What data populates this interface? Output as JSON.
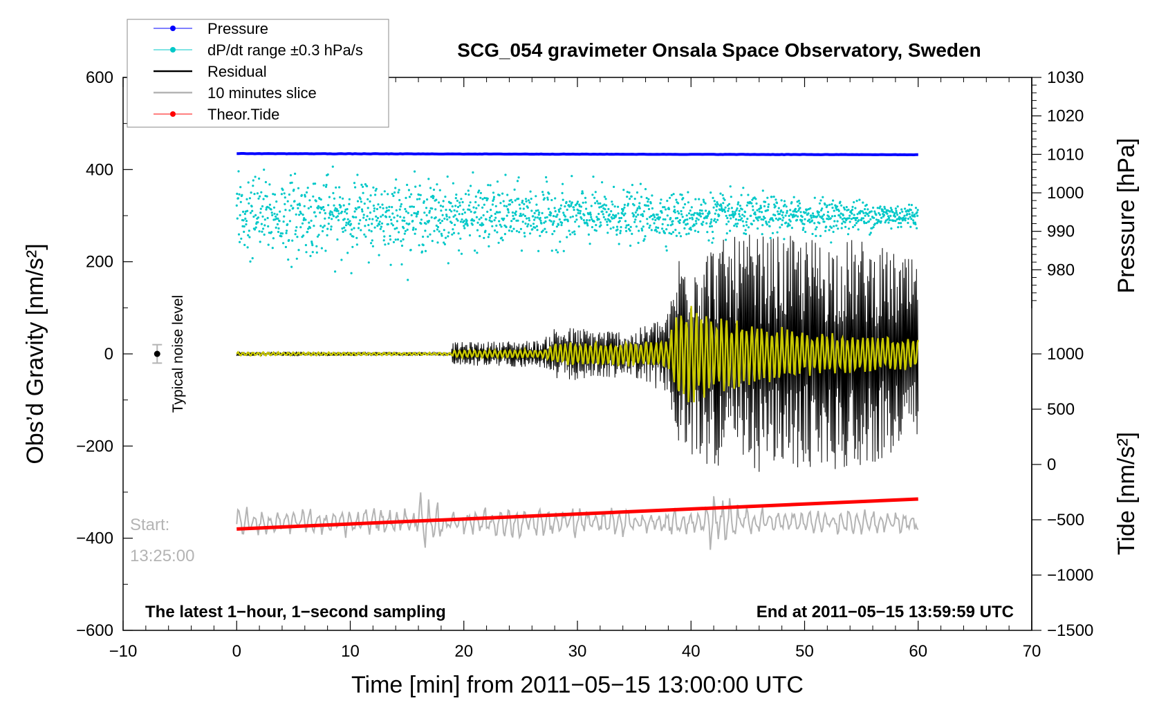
{
  "chart_data": {
    "type": "line",
    "title": "SCG_054 gravimeter Onsala Space Observatory, Sweden",
    "xlabel": "Time [min] from 2011−05−15 13:00:00 UTC",
    "ylabel": "Obs’d Gravity [nm/s²]",
    "y2label_pressure": "Pressure [hPa]",
    "y2label_tide": "Tide [nm/s²]",
    "xlim": [
      -10,
      70
    ],
    "ylim": [
      -600,
      600
    ],
    "pressure_lim": [
      970,
      1030
    ],
    "tide_lim": [
      -1500,
      1000
    ],
    "x_ticks": [
      "−10",
      "0",
      "10",
      "20",
      "30",
      "40",
      "50",
      "60",
      "70"
    ],
    "x_tick_values": [
      -10,
      0,
      10,
      20,
      30,
      40,
      50,
      60,
      70
    ],
    "y_ticks": [
      "−600",
      "−400",
      "−200",
      "0",
      "200",
      "400",
      "600"
    ],
    "y_tick_values": [
      -600,
      -400,
      -200,
      0,
      200,
      400,
      600
    ],
    "pressure_ticks": [
      "980",
      "990",
      "1000",
      "1010",
      "1020",
      "1030"
    ],
    "pressure_tick_values": [
      980,
      990,
      1000,
      1010,
      1020,
      1030
    ],
    "tide_ticks": [
      "−1500",
      "−1000",
      "−500",
      "0",
      "500",
      "1000"
    ],
    "tide_tick_values": [
      -1500,
      -1000,
      -500,
      0,
      500,
      1000
    ],
    "legend": {
      "position": "top-left",
      "entries": [
        {
          "label": "Pressure",
          "color": "#0000ff",
          "marker": true
        },
        {
          "label": "dP/dt range ±0.3 hPa/s",
          "color": "#00c8c8",
          "marker": true
        },
        {
          "label": "Residual",
          "color": "#000000",
          "marker": false
        },
        {
          "label": "10 minutes slice",
          "color": "#b4b4b4",
          "marker": false
        },
        {
          "label": "Theor.Tide",
          "color": "#ff0000",
          "marker": true
        }
      ]
    },
    "annotations": {
      "bottom_left": "The latest 1−hour, 1−second sampling",
      "bottom_right": "End at 2011−05−15 13:59:59 UTC",
      "noise_label": "Typical noise level",
      "slice_start_label": "Start:",
      "slice_start_time": "13:25:00"
    },
    "noise_bar": {
      "x": -7,
      "y": 0,
      "half_range": 20
    },
    "series": [
      {
        "name": "Pressure",
        "units": "hPa",
        "x_range": [
          0,
          60
        ],
        "start": 1010.2,
        "end": 1009.9,
        "color": "#0000ff"
      },
      {
        "name": "dP/dt range ±0.3 hPa/s",
        "units": "nm/s² (plot scale)",
        "x_range": [
          0,
          60
        ],
        "center": 300,
        "spread_early": 100,
        "spread_late": 30,
        "color": "#00c8c8"
      },
      {
        "name": "Residual",
        "units": "nm/s²",
        "x_range": [
          0,
          60
        ],
        "color": "#000000",
        "envelope": [
          {
            "x": 0,
            "amp": 5
          },
          {
            "x": 5,
            "amp": 5
          },
          {
            "x": 18.9,
            "amp": 4
          },
          {
            "x": 19,
            "amp": 25
          },
          {
            "x": 27,
            "amp": 30
          },
          {
            "x": 28,
            "amp": 60
          },
          {
            "x": 35,
            "amp": 50
          },
          {
            "x": 38,
            "amp": 90
          },
          {
            "x": 39,
            "amp": 230
          },
          {
            "x": 45,
            "amp": 260
          },
          {
            "x": 55,
            "amp": 250
          },
          {
            "x": 60,
            "amp": 200
          }
        ]
      },
      {
        "name": "Residual (filtered)",
        "units": "nm/s²",
        "x_range": [
          0,
          60
        ],
        "color": "#c8c800",
        "envelope": [
          {
            "x": 0,
            "amp": 4
          },
          {
            "x": 18.9,
            "amp": 3
          },
          {
            "x": 19,
            "amp": 8
          },
          {
            "x": 27,
            "amp": 10
          },
          {
            "x": 28,
            "amp": 25
          },
          {
            "x": 38,
            "amp": 30
          },
          {
            "x": 39,
            "amp": 130
          },
          {
            "x": 42,
            "amp": 90
          },
          {
            "x": 50,
            "amp": 50
          },
          {
            "x": 60,
            "amp": 35
          }
        ]
      },
      {
        "name": "10 minutes slice",
        "units": "nm/s²",
        "x_range": [
          0,
          60
        ],
        "baseline": -365,
        "amp": 25,
        "color": "#b4b4b4"
      },
      {
        "name": "Theor.Tide",
        "units": "nm/s² (plot scale)",
        "x_range": [
          0,
          60
        ],
        "start": -380,
        "end": -315,
        "color": "#ff0000"
      }
    ]
  }
}
